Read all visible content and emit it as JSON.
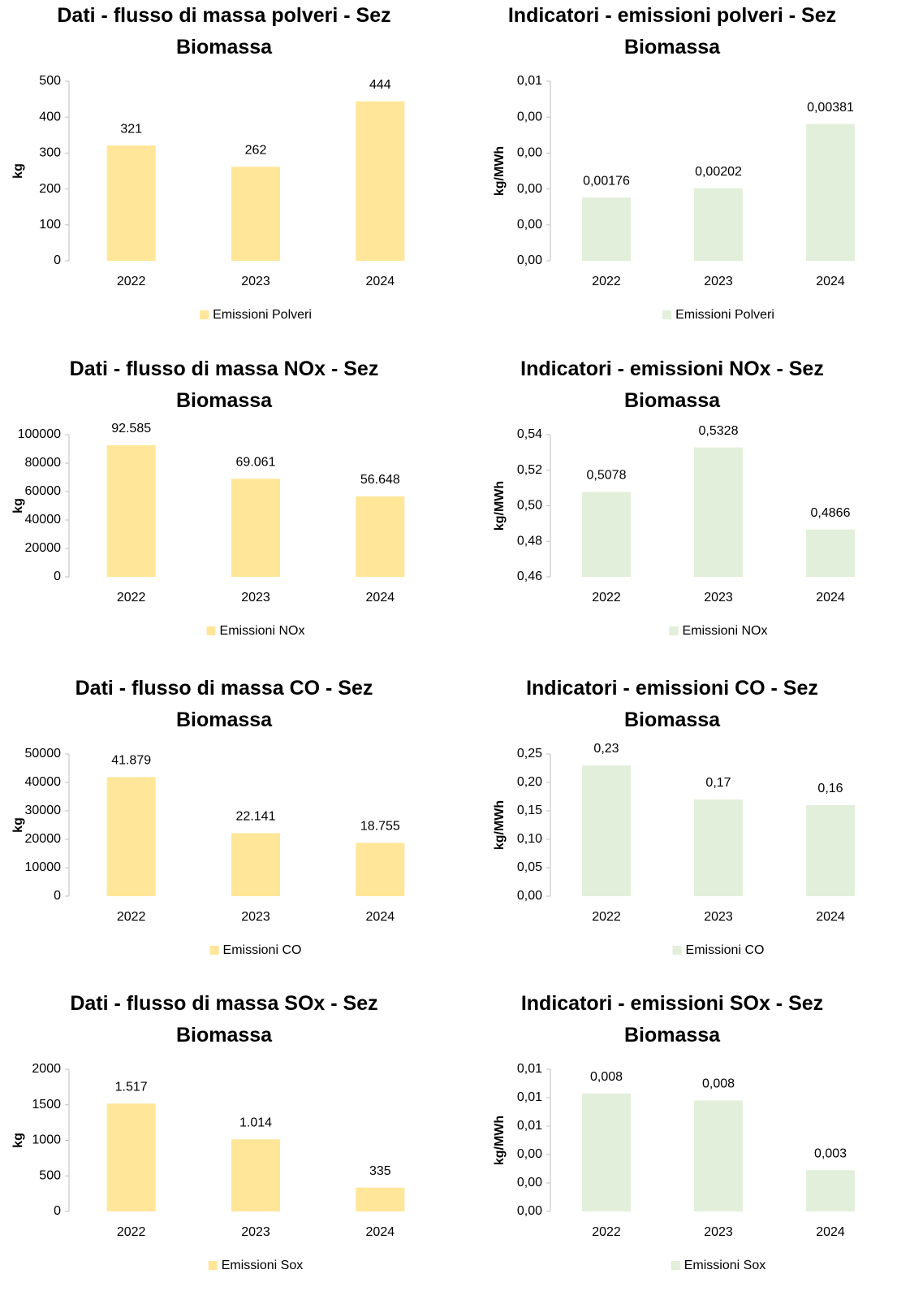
{
  "chart_data": [
    {
      "type": "bar",
      "title": "Dati - flusso di massa polveri - Sez Biomassa",
      "ylabel": "kg",
      "categories": [
        "2022",
        "2023",
        "2024"
      ],
      "series": [
        {
          "name": "Emissioni Polveri",
          "color": "#ffe699",
          "values": [
            321,
            262,
            444
          ]
        }
      ],
      "ylim": [
        0,
        500
      ],
      "yticks": [
        0,
        100,
        200,
        300,
        400,
        500
      ],
      "legend": "bottom"
    },
    {
      "type": "bar",
      "title": "Indicatori - emissioni polveri - Sez Biomassa",
      "ylabel": "kg/MWh",
      "categories": [
        "2022",
        "2023",
        "2024"
      ],
      "series": [
        {
          "name": "Emissioni Polveri",
          "color": "#e2efda",
          "values": [
            0.00176,
            0.00202,
            0.00381
          ],
          "value_labels": [
            "0,00176",
            "0,00202",
            "0,00381"
          ]
        }
      ],
      "ylim": [
        0,
        0.005
      ],
      "yticks": [
        {
          "value": 0,
          "label": "0,00"
        },
        {
          "value": 0.001,
          "label": "0,00"
        },
        {
          "value": 0.002,
          "label": "0,00"
        },
        {
          "value": 0.003,
          "label": "0,00"
        },
        {
          "value": 0.004,
          "label": "0,00"
        },
        {
          "value": 0.005,
          "label": "0,01"
        }
      ],
      "legend": "bottom"
    },
    {
      "type": "bar",
      "title": "Dati - flusso di massa NOx - Sez Biomassa",
      "ylabel": "kg",
      "categories": [
        "2022",
        "2023",
        "2024"
      ],
      "series": [
        {
          "name": "Emissioni NOx",
          "color": "#ffe699",
          "values": [
            92585,
            69061,
            56648
          ],
          "value_labels": [
            "92.585",
            "69.061",
            "56.648"
          ]
        }
      ],
      "ylim": [
        0,
        100000
      ],
      "yticks": [
        0,
        20000,
        40000,
        60000,
        80000,
        100000
      ],
      "legend": "bottom"
    },
    {
      "type": "bar",
      "title": "Indicatori - emissioni NOx - Sez Biomassa",
      "ylabel": "kg/MWh",
      "categories": [
        "2022",
        "2023",
        "2024"
      ],
      "series": [
        {
          "name": "Emissioni NOx",
          "color": "#e2efda",
          "values": [
            0.5078,
            0.5328,
            0.4866
          ],
          "value_labels": [
            "0,5078",
            "0,5328",
            "0,4866"
          ]
        }
      ],
      "ylim": [
        0.46,
        0.54
      ],
      "yticks": [
        {
          "value": 0.46,
          "label": "0,46"
        },
        {
          "value": 0.48,
          "label": "0,48"
        },
        {
          "value": 0.5,
          "label": "0,50"
        },
        {
          "value": 0.52,
          "label": "0,52"
        },
        {
          "value": 0.54,
          "label": "0,54"
        }
      ],
      "legend": "bottom"
    },
    {
      "type": "bar",
      "title": "Dati - flusso di massa CO - Sez Biomassa",
      "ylabel": "kg",
      "categories": [
        "2022",
        "2023",
        "2024"
      ],
      "series": [
        {
          "name": "Emissioni CO",
          "color": "#ffe699",
          "values": [
            41879,
            22141,
            18755
          ],
          "value_labels": [
            "41.879",
            "22.141",
            "18.755"
          ]
        }
      ],
      "ylim": [
        0,
        50000
      ],
      "yticks": [
        0,
        10000,
        20000,
        30000,
        40000,
        50000
      ],
      "legend": "bottom"
    },
    {
      "type": "bar",
      "title": "Indicatori - emissioni CO - Sez Biomassa",
      "ylabel": "kg/MWh",
      "categories": [
        "2022",
        "2023",
        "2024"
      ],
      "series": [
        {
          "name": "Emissioni CO",
          "color": "#e2efda",
          "values": [
            0.23,
            0.17,
            0.16
          ],
          "value_labels": [
            "0,23",
            "0,17",
            "0,16"
          ]
        }
      ],
      "ylim": [
        0,
        0.25
      ],
      "yticks": [
        {
          "value": 0,
          "label": "0,00"
        },
        {
          "value": 0.05,
          "label": "0,05"
        },
        {
          "value": 0.1,
          "label": "0,10"
        },
        {
          "value": 0.15,
          "label": "0,15"
        },
        {
          "value": 0.2,
          "label": "0,20"
        },
        {
          "value": 0.25,
          "label": "0,25"
        }
      ],
      "legend": "bottom"
    },
    {
      "type": "bar",
      "title": "Dati - flusso di massa SOx - Sez Biomassa",
      "ylabel": "kg",
      "categories": [
        "2022",
        "2023",
        "2024"
      ],
      "series": [
        {
          "name": "Emissioni Sox",
          "color": "#ffe699",
          "values": [
            1517,
            1014,
            335
          ],
          "value_labels": [
            "1.517",
            "1.014",
            "335"
          ]
        }
      ],
      "ylim": [
        0,
        2000
      ],
      "yticks": [
        0,
        500,
        1000,
        1500,
        2000
      ],
      "legend": "bottom"
    },
    {
      "type": "bar",
      "title": "Indicatori - emissioni SOx - Sez Biomassa",
      "ylabel": "kg/MWh",
      "categories": [
        "2022",
        "2023",
        "2024"
      ],
      "series": [
        {
          "name": "Emissioni Sox",
          "color": "#e2efda",
          "values": [
            0.0083,
            0.0078,
            0.0029
          ],
          "value_labels": [
            "0,008",
            "0,008",
            "0,003"
          ]
        }
      ],
      "ylim": [
        0,
        0.01
      ],
      "yticks": [
        {
          "value": 0,
          "label": "0,00"
        },
        {
          "value": 0.002,
          "label": "0,00"
        },
        {
          "value": 0.004,
          "label": "0,00"
        },
        {
          "value": 0.006,
          "label": "0,01"
        },
        {
          "value": 0.008,
          "label": "0,01"
        },
        {
          "value": 0.01,
          "label": "0,01"
        }
      ],
      "legend": "bottom"
    }
  ]
}
